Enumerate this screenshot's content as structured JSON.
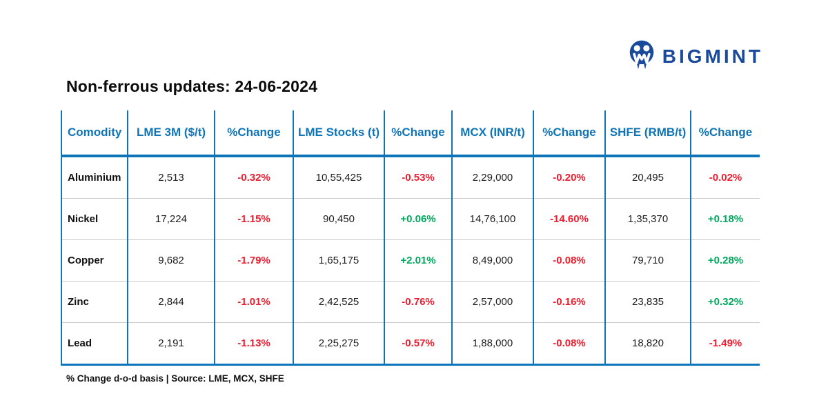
{
  "brand": {
    "name": "BIGMINT",
    "icon": "bigmint-mascot-icon",
    "color": "#1a4a9c"
  },
  "title": "Non-ferrous updates: 24-06-2024",
  "chart_data": {
    "type": "table",
    "title": "Non-ferrous updates: 24-06-2024",
    "columns": [
      "Comodity",
      "LME 3M ($/t)",
      "%Change",
      "LME Stocks (t)",
      "%Change",
      "MCX (INR/t)",
      "%Change",
      "SHFE (RMB/t)",
      "%Change"
    ],
    "change_column_indices": [
      2,
      4,
      6,
      8
    ],
    "rows": [
      [
        "Aluminium",
        "2,513",
        "-0.32%",
        "10,55,425",
        "-0.53%",
        "2,29,000",
        "-0.20%",
        "20,495",
        "-0.02%"
      ],
      [
        "Nickel",
        "17,224",
        "-1.15%",
        "90,450",
        "+0.06%",
        "14,76,100",
        "-14.60%",
        "1,35,370",
        "+0.18%"
      ],
      [
        "Copper",
        "9,682",
        "-1.79%",
        "1,65,175",
        "+2.01%",
        "8,49,000",
        "-0.08%",
        "79,710",
        "+0.28%"
      ],
      [
        "Zinc",
        "2,844",
        "-1.01%",
        "2,42,525",
        "-0.76%",
        "2,57,000",
        "-0.16%",
        "23,835",
        "+0.32%"
      ],
      [
        "Lead",
        "2,191",
        "-1.13%",
        "2,25,275",
        "-0.57%",
        "1,88,000",
        "-0.08%",
        "18,820",
        "-1.49%"
      ]
    ],
    "footnote": "% Change d-o-d basis | Source: LME, MCX, SHFE",
    "colors": {
      "header_blue": "#0e74b8",
      "negative_red": "#ee1c2e",
      "positive_green": "#00a85d",
      "brand_navy": "#1a4a9c",
      "row_divider_gray": "#c9c9c9"
    }
  }
}
